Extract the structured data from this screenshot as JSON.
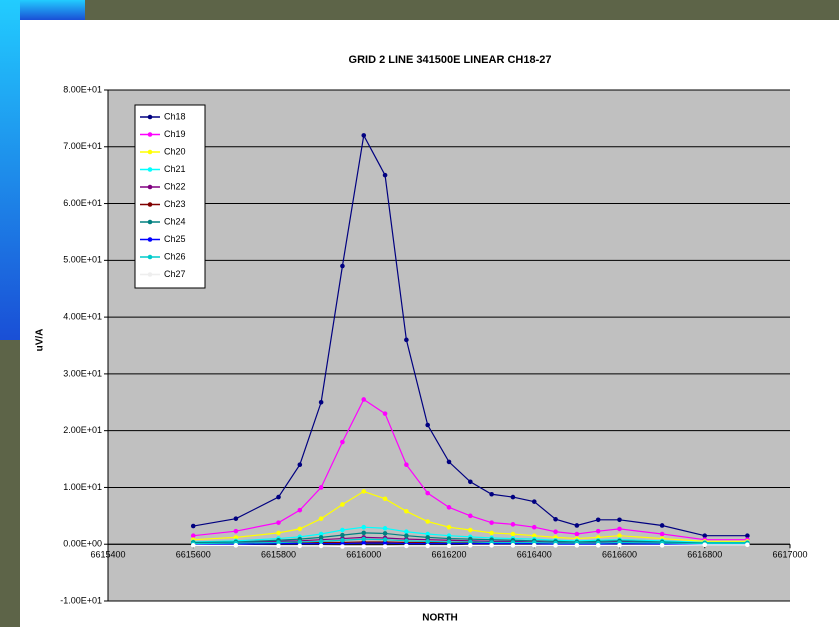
{
  "chart_data": {
    "type": "line",
    "title": "GRID 2 LINE 341500E LINEAR CH18-27",
    "x_label": "NORTH",
    "y_label": "uV/A",
    "x": [
      6615600,
      6615700,
      6615800,
      6615850,
      6615900,
      6615950,
      6616000,
      6616050,
      6616100,
      6616150,
      6616200,
      6616250,
      6616300,
      6616350,
      6616400,
      6616450,
      6616500,
      6616550,
      6616600,
      6616700,
      6616800,
      6616900
    ],
    "series": [
      {
        "name": "Ch18",
        "color": "#000080",
        "values": [
          3.2,
          4.5,
          8.3,
          14,
          25,
          49,
          72,
          65,
          36,
          21,
          14.5,
          11,
          8.8,
          8.3,
          7.5,
          4.4,
          3.3,
          4.3,
          4.3,
          3.3,
          1.5,
          1.5
        ]
      },
      {
        "name": "Ch19",
        "color": "#ff00ff",
        "values": [
          1.5,
          2.3,
          3.8,
          6,
          10,
          18,
          25.5,
          23,
          14,
          9,
          6.5,
          5,
          3.8,
          3.5,
          3,
          2.2,
          1.8,
          2.3,
          2.7,
          1.8,
          0.8,
          0.8
        ]
      },
      {
        "name": "Ch20",
        "color": "#ffff00",
        "values": [
          0.8,
          1.2,
          2,
          2.7,
          4.5,
          7,
          9.3,
          8,
          5.8,
          4,
          3,
          2.5,
          2,
          1.8,
          1.5,
          1.2,
          1,
          1.2,
          1.5,
          1,
          0.5,
          0.5
        ]
      },
      {
        "name": "Ch21",
        "color": "#00ffff",
        "values": [
          0.4,
          0.6,
          1,
          1.3,
          1.8,
          2.5,
          3,
          2.8,
          2.2,
          1.8,
          1.5,
          1.3,
          1.1,
          1,
          0.9,
          0.7,
          0.6,
          0.7,
          0.8,
          0.6,
          0.3,
          0.3
        ]
      },
      {
        "name": "Ch22",
        "color": "#800080",
        "values": [
          0.2,
          0.3,
          0.5,
          0.6,
          0.8,
          1,
          1.2,
          1.1,
          0.9,
          0.8,
          0.7,
          0.6,
          0.5,
          0.5,
          0.4,
          0.3,
          0.3,
          0.3,
          0.4,
          0.3,
          0.1,
          0.1
        ]
      },
      {
        "name": "Ch23",
        "color": "#800000",
        "values": [
          0.1,
          0.1,
          0.2,
          0.2,
          0.3,
          0.3,
          0.4,
          0.4,
          0.3,
          0.3,
          0.3,
          0.2,
          0.2,
          0.2,
          0.2,
          0.1,
          0.1,
          0.1,
          0.2,
          0.1,
          0.1,
          0.1
        ]
      },
      {
        "name": "Ch24",
        "color": "#008080",
        "values": [
          0.3,
          0.4,
          0.7,
          0.9,
          1.2,
          1.6,
          2,
          1.9,
          1.5,
          1.2,
          1,
          0.9,
          0.8,
          0.7,
          0.6,
          0.5,
          0.4,
          0.5,
          0.6,
          0.4,
          0.2,
          0.2
        ]
      },
      {
        "name": "Ch25",
        "color": "#0000ff",
        "values": [
          0,
          0,
          0.1,
          0.1,
          0.1,
          0.1,
          0.2,
          0.2,
          0.1,
          0.1,
          0.1,
          0.1,
          0.1,
          0.1,
          0.1,
          0,
          0,
          0,
          0.1,
          0,
          0,
          0
        ]
      },
      {
        "name": "Ch26",
        "color": "#00cccc",
        "values": [
          0.1,
          0.2,
          0.3,
          0.4,
          0.5,
          0.7,
          0.9,
          0.8,
          0.6,
          0.5,
          0.4,
          0.4,
          0.3,
          0.3,
          0.3,
          0.2,
          0.2,
          0.2,
          0.3,
          0.2,
          0.1,
          0.1
        ]
      },
      {
        "name": "Ch27",
        "color": "#ffffff",
        "values": [
          -0.2,
          -0.2,
          -0.3,
          -0.3,
          -0.3,
          -0.4,
          -0.4,
          -0.4,
          -0.3,
          -0.3,
          -0.3,
          -0.2,
          -0.2,
          -0.2,
          -0.2,
          -0.2,
          -0.2,
          -0.2,
          -0.2,
          -0.2,
          -0.1,
          -0.1
        ]
      }
    ],
    "xlim": [
      6615400,
      6617000
    ],
    "xticks": [
      6615400,
      6615600,
      6615800,
      6616000,
      6616200,
      6616400,
      6616600,
      6616800,
      6617000
    ],
    "ylim": [
      -10,
      80
    ],
    "yticks": [
      {
        "value": -10,
        "label": "-1.00E+01"
      },
      {
        "value": 0,
        "label": "0.00E+00"
      },
      {
        "value": 10,
        "label": "1.00E+01"
      },
      {
        "value": 20,
        "label": "2.00E+01"
      },
      {
        "value": 30,
        "label": "3.00E+01"
      },
      {
        "value": 40,
        "label": "4.00E+01"
      },
      {
        "value": 50,
        "label": "5.00E+01"
      },
      {
        "value": 60,
        "label": "6.00E+01"
      },
      {
        "value": 70,
        "label": "7.00E+01"
      },
      {
        "value": 80,
        "label": "8.00E+01"
      }
    ],
    "grid": true,
    "legend": "upper left"
  }
}
